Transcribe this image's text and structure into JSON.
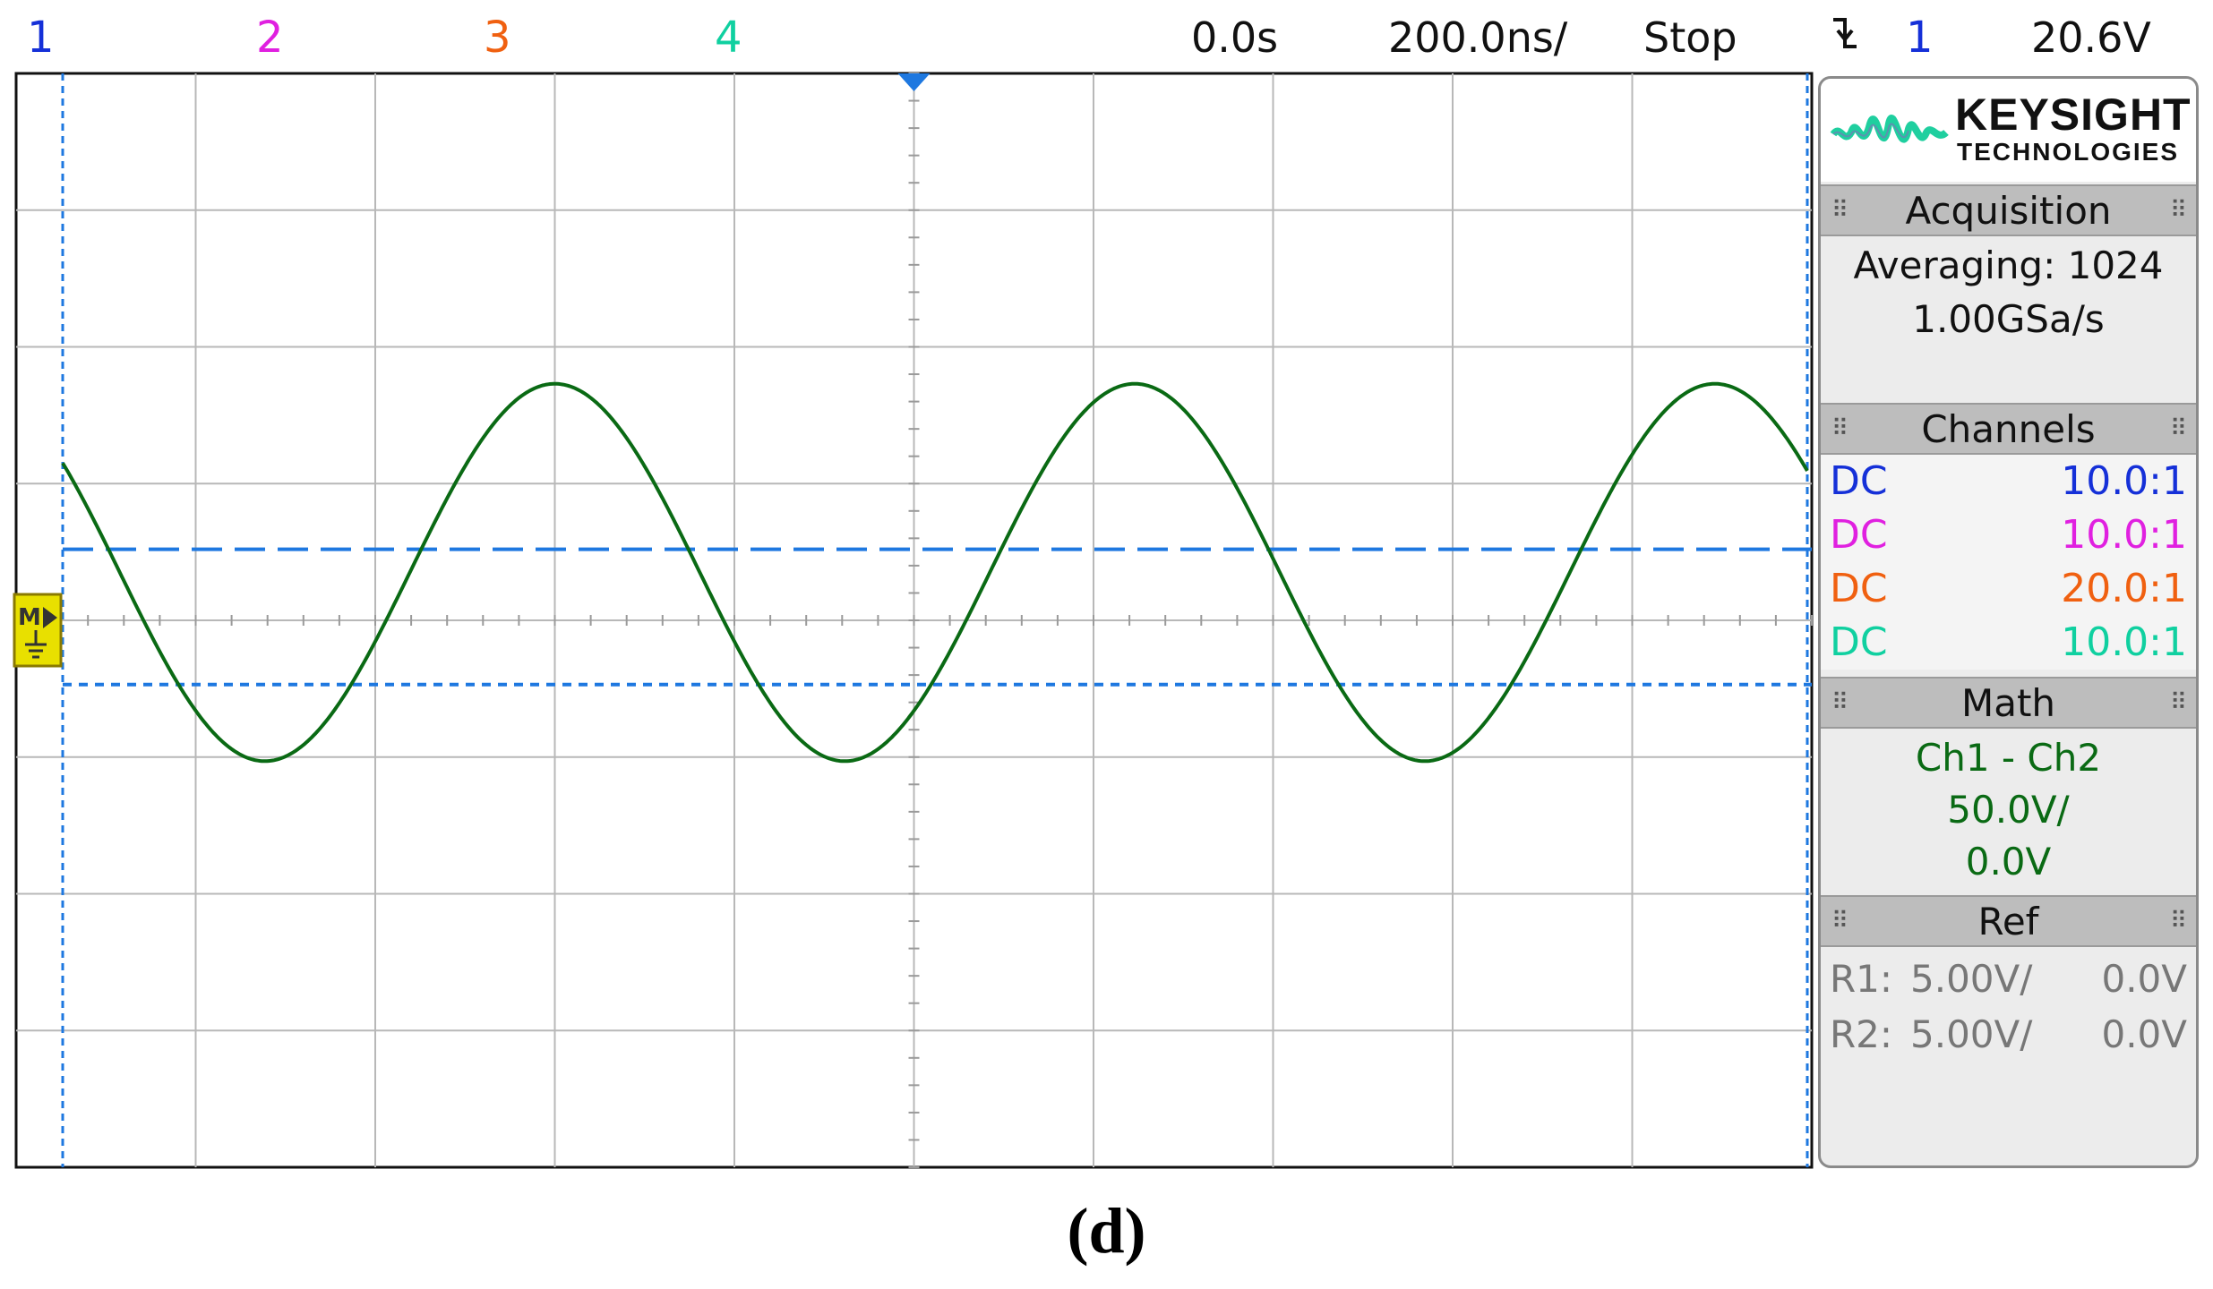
{
  "topbar": {
    "channels": [
      {
        "label": "1",
        "color": "#1530d8"
      },
      {
        "label": "2",
        "color": "#e020e0"
      },
      {
        "label": "3",
        "color": "#f06010"
      },
      {
        "label": "4",
        "color": "#10d0a0"
      }
    ],
    "time_offset": "0.0s",
    "time_scale": "200.0ns/",
    "run_state": "Stop",
    "trigger_icon": "falling-edge-trigger-icon",
    "trigger_channel": "1",
    "trigger_level": "20.6V"
  },
  "brand": {
    "name": "KEYSIGHT",
    "sub": "TECHNOLOGIES"
  },
  "acquisition": {
    "title": "Acquisition",
    "mode": "Averaging: 1024",
    "rate": "1.00GSa/s"
  },
  "channels_panel": {
    "title": "Channels",
    "rows": [
      {
        "coupling": "DC",
        "probe": "10.0:1",
        "color": "#1530d8"
      },
      {
        "coupling": "DC",
        "probe": "10.0:1",
        "color": "#e020e0"
      },
      {
        "coupling": "DC",
        "probe": "20.0:1",
        "color": "#f06010"
      },
      {
        "coupling": "DC",
        "probe": "10.0:1",
        "color": "#10d0a0"
      }
    ]
  },
  "math": {
    "title": "Math",
    "function": "Ch1 - Ch2",
    "scale": "50.0V/",
    "offset": "0.0V",
    "color": "#0a6a14"
  },
  "ref": {
    "title": "Ref",
    "rows": [
      {
        "name": "R1:",
        "scale": "5.00V/",
        "offset": "0.0V"
      },
      {
        "name": "R2:",
        "scale": "5.00V/",
        "offset": "0.0V"
      }
    ]
  },
  "math_marker_label": "M",
  "caption": "(d)",
  "waveform": {
    "color": "#0a6a14",
    "amplitude_div": 1.38,
    "offset_div": 0.35,
    "period_div": 3.23,
    "first_peak_div": 3.0
  },
  "cursors": {
    "color": "#1e78e0",
    "upper_div": 0.52,
    "lower_div": -0.47
  }
}
